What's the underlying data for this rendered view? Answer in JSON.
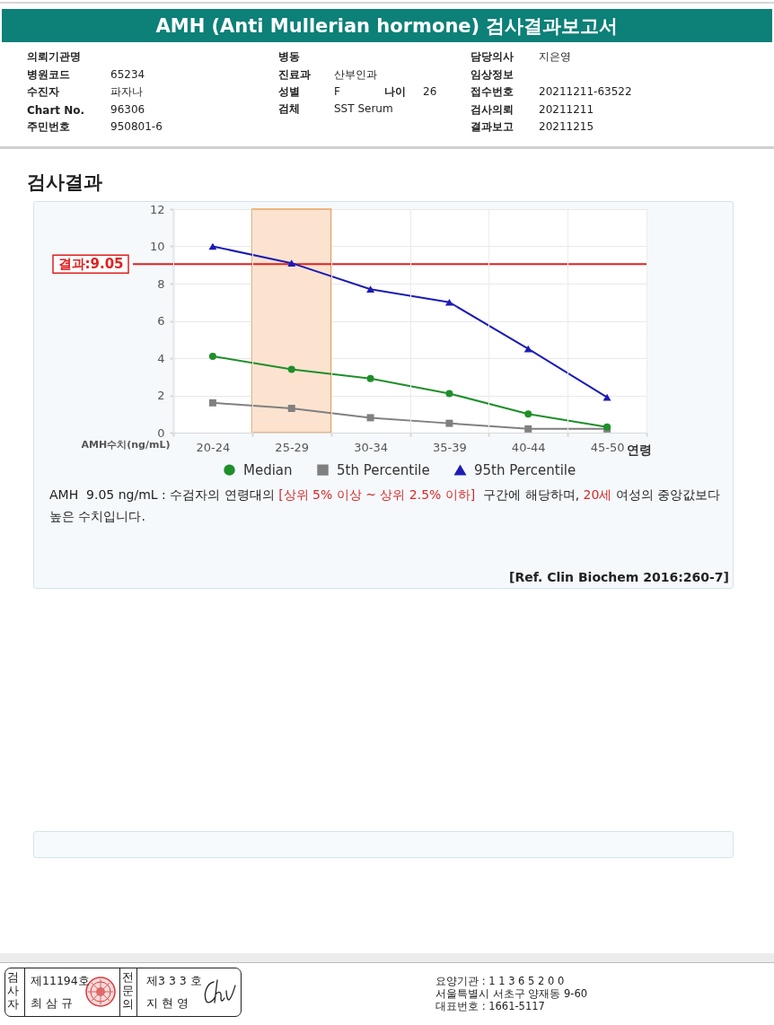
{
  "chart_data": {
    "type": "line",
    "title": "AMH (Anti Mullerian hormone) 검사결과보고서",
    "subtitle": "검사결과",
    "xlabel": "연령",
    "ylabel": "AMH수치(ng/mL)",
    "categories": [
      "20-24",
      "25-29",
      "30-34",
      "35-39",
      "40-44",
      "45-50"
    ],
    "series": [
      {
        "name": "Median",
        "color": "#1f8f2a",
        "marker": "circle",
        "values": [
          4.1,
          3.4,
          2.9,
          2.1,
          1.0,
          0.3
        ]
      },
      {
        "name": "5th Percentile",
        "color": "#808080",
        "marker": "square",
        "values": [
          1.6,
          1.3,
          0.8,
          0.5,
          0.2,
          0.2
        ]
      },
      {
        "name": "95th Percentile",
        "color": "#1c1cb4",
        "marker": "triangle",
        "values": [
          10.0,
          9.1,
          7.7,
          7.0,
          4.5,
          1.9
        ]
      }
    ],
    "ylim": [
      0,
      12
    ],
    "yticks": [
      0,
      2,
      4,
      6,
      8,
      10,
      12
    ],
    "ref_lines": [
      {
        "axis": "y",
        "value": 9.05,
        "label": "결과:9.05",
        "color": "#e02020"
      }
    ],
    "bands": [
      {
        "axis": "x",
        "from": "25-29",
        "to": "25-29",
        "color": "#fbe3d0"
      }
    ],
    "grid": true,
    "legend": "bottom",
    "line_style": "solid",
    "annotations": [
      "의뢰기관명",
      "병동",
      "담당의사",
      "지은영",
      "병원코드",
      "65234",
      "진료과",
      "산부인과",
      "임상정보",
      "수진자",
      "파자나",
      "성별",
      "F",
      "나이",
      "26",
      "접수번호",
      "20211211-63522",
      "Chart No.",
      "96306",
      "검체",
      "SST Serum",
      "검사의뢰",
      "20211211",
      "주민번호",
      "950801-6",
      "결과보고",
      "20211215",
      "AMH  9.05 ng/mL : 수검자의 연령대의 ",
      "[상위 5% 이상 ~ 상위 2.5% 이하]",
      "  구간에 해당하며, ",
      "20세",
      " 여성의 중앙값보다",
      "높은 수치입니다.",
      "[Ref. Clin Biochem 2016:260-7]",
      "검사자",
      "제11194호",
      "최 삼 규",
      "전문의",
      "제3 3 3 호",
      "지 현 영",
      "요양기관 : 1 1 3 6 5 2 0 0",
      "서울특별시 서초구 양재동 9-60",
      "대표번호 : 1661-5117"
    ]
  }
}
